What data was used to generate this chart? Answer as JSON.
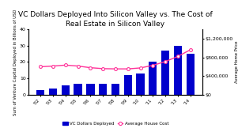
{
  "title": "VC Dollars Deployed Into Silicon Valley vs. The Cost of\nReal Estate in Silicon Valley",
  "years": [
    "'02",
    "'03",
    "'04",
    "'05",
    "'06",
    "'07",
    "'08",
    "'09",
    "'10",
    "'11",
    "'12",
    "'13",
    "'14"
  ],
  "vc_dollars": [
    3,
    4,
    6,
    7,
    7,
    7,
    7,
    12,
    13,
    20,
    27,
    30,
    25
  ],
  "house_cost": [
    600000,
    615000,
    635000,
    615000,
    580000,
    560000,
    555000,
    555000,
    575000,
    630000,
    710000,
    820000,
    960000
  ],
  "bar_color": "#0000cc",
  "line_color": "#ff3399",
  "ylabel_left": "Sum of Venture Capital Deployed in Billions of USD",
  "ylabel_right": "Average Home Price",
  "ylim_left": [
    0,
    35
  ],
  "ylim_right": [
    0,
    1400000
  ],
  "yticks_left": [
    0,
    10,
    20,
    30,
    40
  ],
  "ytick_labels_left": [
    "$0",
    "10",
    "20",
    "30",
    "40"
  ],
  "yticks_right": [
    0,
    400000,
    800000,
    1200000
  ],
  "ytick_labels_right": [
    "$0",
    "$400,000",
    "$800,000",
    "$1,200,000"
  ],
  "legend_vc": "VC Dollars Deployed",
  "legend_house": "Average House Cost",
  "bg_color": "#ffffff",
  "title_fontsize": 6.5,
  "tick_fontsize": 4.5,
  "axis_label_fontsize": 3.8
}
